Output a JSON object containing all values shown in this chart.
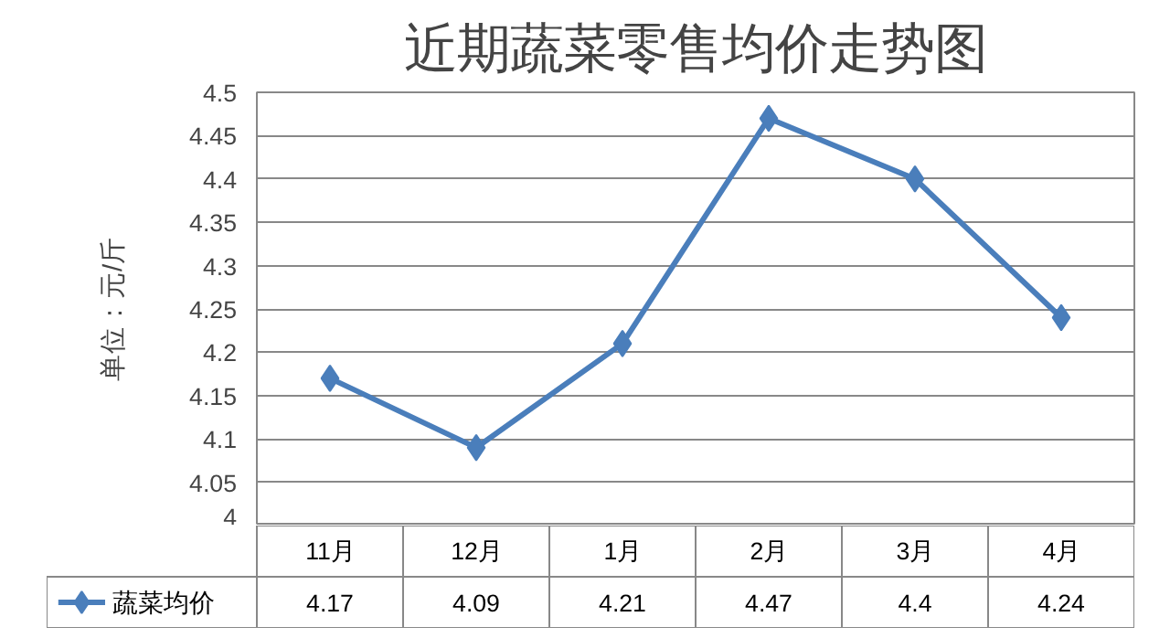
{
  "chart_data": {
    "type": "line",
    "title": "近期蔬菜零售均价走势图",
    "ylabel": "单位：元/斤",
    "categories": [
      "11月",
      "12月",
      "1月",
      "2月",
      "3月",
      "4月"
    ],
    "series": [
      {
        "name": "蔬菜均价",
        "color": "#4a7ebb",
        "values": [
          4.17,
          4.09,
          4.21,
          4.47,
          4.4,
          4.24
        ]
      }
    ],
    "ylim": [
      4,
      4.5
    ],
    "yticks": [
      4,
      4.05,
      4.1,
      4.15,
      4.2,
      4.25,
      4.3,
      4.35,
      4.4,
      4.45,
      4.5
    ],
    "grid": "y",
    "marker": "diamond",
    "line_style": "solid",
    "legend": "bottom",
    "data_labels": true,
    "tick_labels": "y"
  }
}
